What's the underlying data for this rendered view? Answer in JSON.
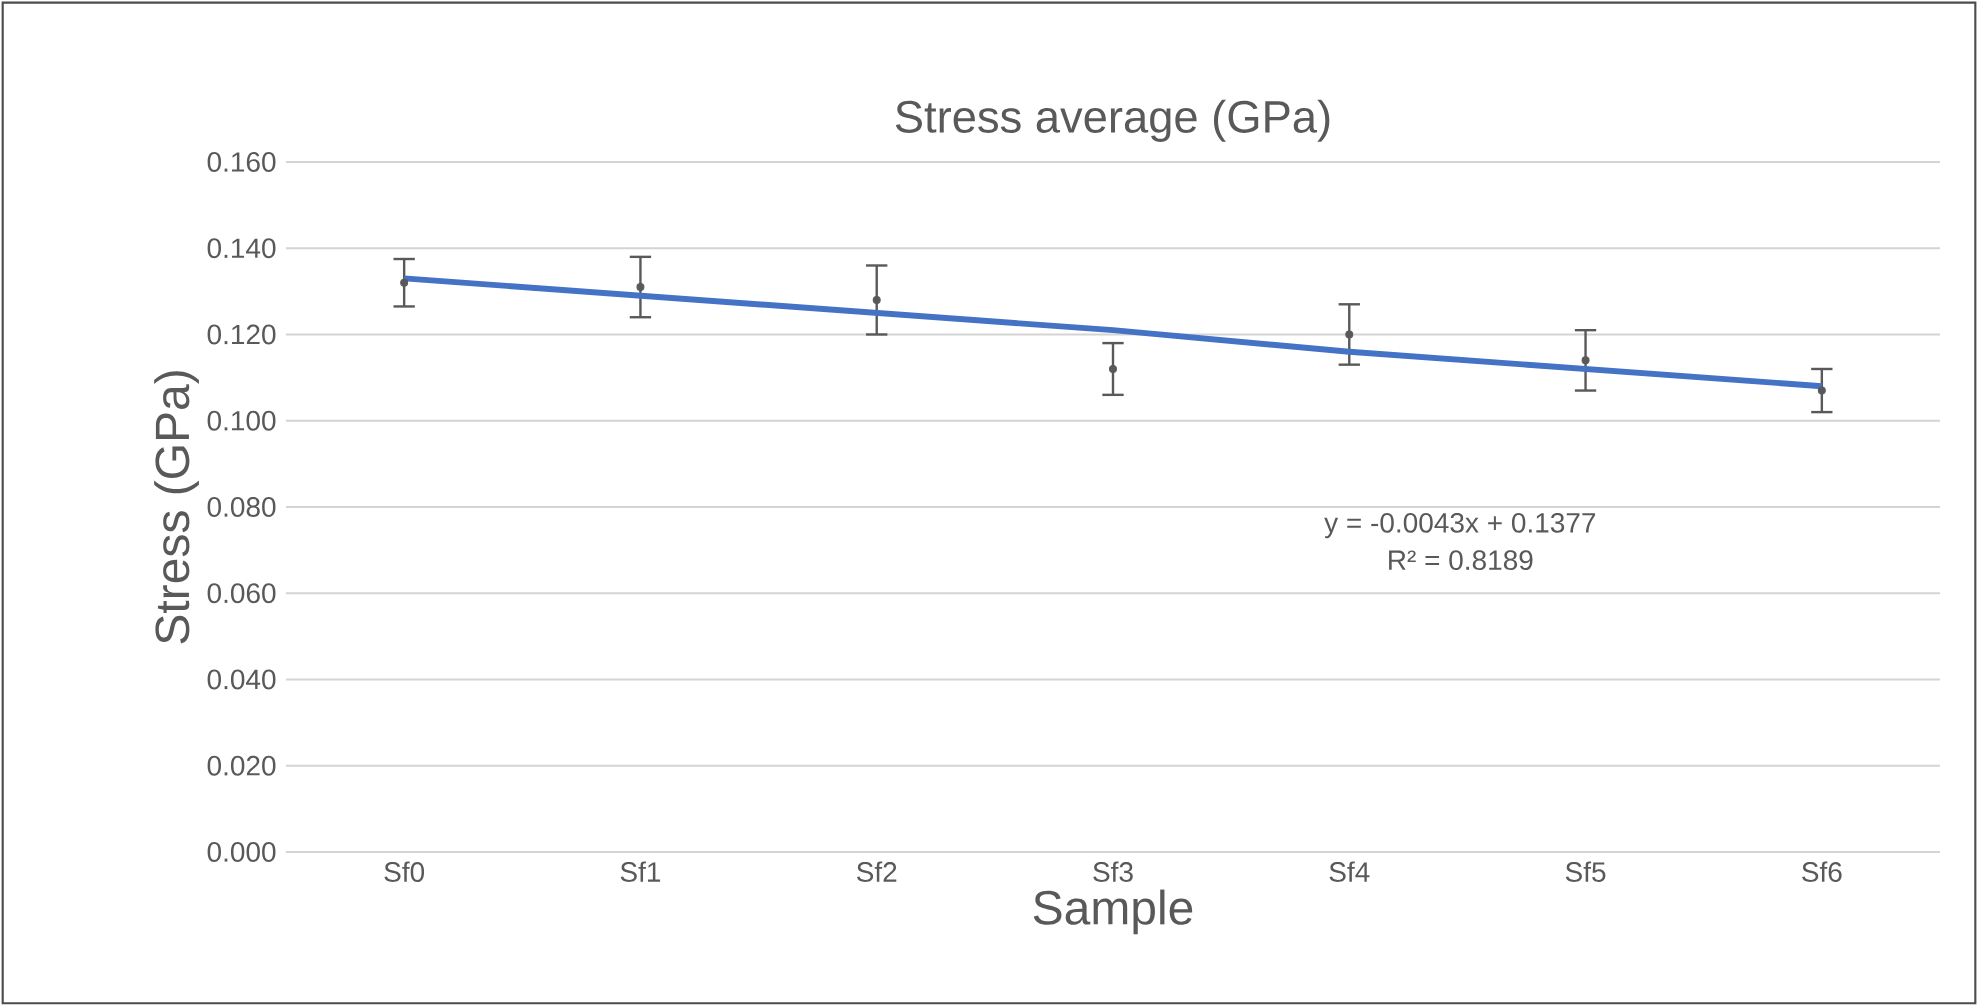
{
  "chart_data": {
    "type": "scatter",
    "title": "Stress average (GPa)",
    "xlabel": "Sample",
    "ylabel": "Stress (GPa)",
    "categories": [
      "Sf0",
      "Sf1",
      "Sf2",
      "Sf3",
      "Sf4",
      "Sf5",
      "Sf6"
    ],
    "series": [
      {
        "marker": "circle",
        "color": "#595959",
        "values": [
          0.132,
          0.131,
          0.128,
          0.112,
          0.12,
          0.114,
          0.107
        ],
        "errors": [
          0.0055,
          0.007,
          0.008,
          0.006,
          0.007,
          0.007,
          0.005
        ]
      },
      {
        "type": "line",
        "color": "#4472c4",
        "line_style": "solid",
        "values": [
          0.133,
          0.129,
          0.125,
          0.121,
          0.116,
          0.112,
          0.108
        ]
      }
    ],
    "ylim": [
      0,
      0.16
    ],
    "yticks": [
      {
        "value": 0,
        "label": "0.000"
      },
      {
        "value": 0.02,
        "label": "0.020"
      },
      {
        "value": 0.04,
        "label": "0.040"
      },
      {
        "value": 0.06,
        "label": "0.060"
      },
      {
        "value": 0.08,
        "label": "0.080"
      },
      {
        "value": 0.1,
        "label": "0.100"
      },
      {
        "value": 0.12,
        "label": "0.120"
      },
      {
        "value": 0.14,
        "label": "0.140"
      },
      {
        "value": 0.16,
        "label": "0.160"
      }
    ],
    "grid": "y",
    "annotations": [
      "y = -0.0043x + 0.1377",
      "R² = 0.8189"
    ]
  }
}
